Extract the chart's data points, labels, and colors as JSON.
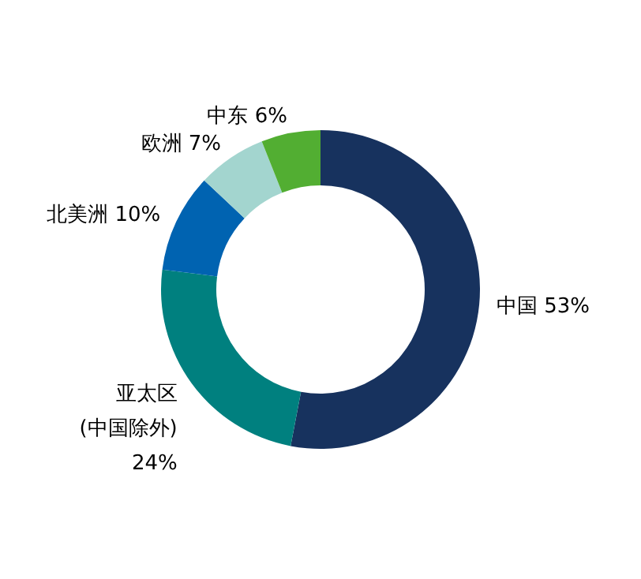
{
  "chart_data": {
    "type": "donut",
    "categories": [
      "中国",
      "亚太区 (中国除外)",
      "北美洲",
      "欧洲",
      "中东"
    ],
    "values": [
      53,
      24,
      10,
      7,
      6
    ],
    "colors": [
      "#17325e",
      "#00807f",
      "#0063b1",
      "#a3d5cf",
      "#52ae32"
    ],
    "value_labels": [
      "53%",
      "24%",
      "10%",
      "7%",
      "6%"
    ],
    "legend": false
  }
}
